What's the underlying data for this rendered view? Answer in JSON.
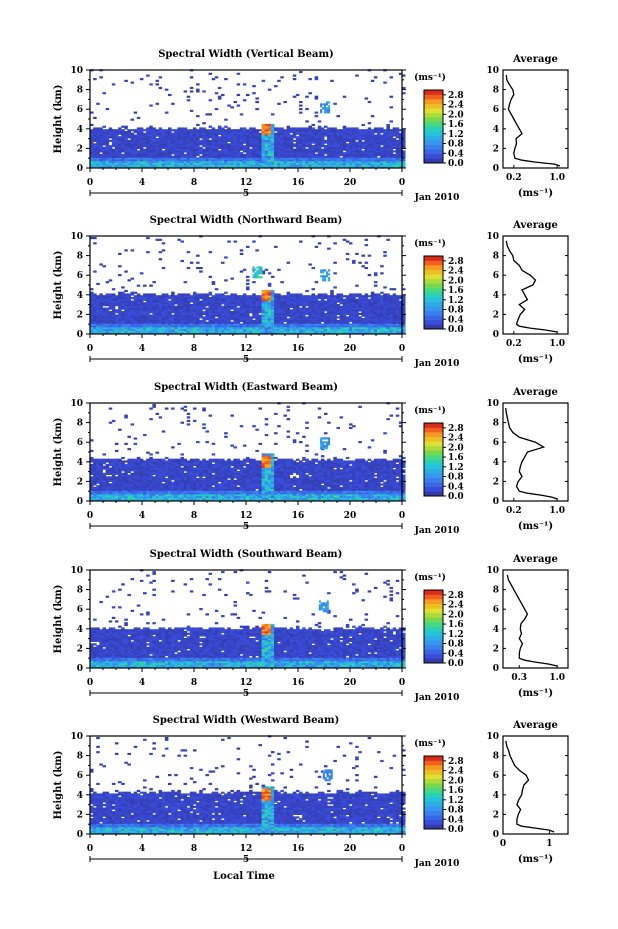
{
  "figure": {
    "xlabel": "Local Time"
  },
  "chart_data": [
    {
      "type": "heatmap",
      "title": "Spectral Width (Vertical Beam)",
      "ylabel": "Height (km)",
      "y_ticks": [
        "0",
        "2",
        "4",
        "6",
        "8",
        "10"
      ],
      "x_ticks": [
        "0",
        "4",
        "8",
        "12",
        "16",
        "20",
        "0"
      ],
      "date_tick": "5",
      "date_label": "Jan 2010",
      "xlim": [
        0,
        24
      ],
      "ylim": [
        0,
        10
      ],
      "colorbar": {
        "unit": "(ms⁻¹)",
        "ticks": [
          "0.0",
          "0.4",
          "0.8",
          "1.2",
          "1.6",
          "2.0",
          "2.4",
          "2.8"
        ],
        "range": [
          0,
          3.0
        ]
      },
      "echo_top_km": 4.0,
      "upper_patches": [
        {
          "t": 18.0,
          "h": 6.2,
          "v": 0.9
        }
      ],
      "average_profile": {
        "title": "Average",
        "xlabel": "(ms⁻¹)",
        "x_ticks": [
          "0.2",
          "1.0"
        ],
        "xlim": [
          0,
          1.2
        ],
        "y_ticks": [
          "0",
          "2",
          "4",
          "6",
          "8",
          "10"
        ],
        "height_km": [
          0.2,
          0.4,
          0.6,
          0.8,
          1.0,
          1.5,
          2.0,
          2.5,
          3.0,
          3.5,
          4.0,
          4.5,
          5.0,
          5.5,
          6.0,
          6.5,
          7.0,
          7.5,
          8.0,
          8.5,
          9.0,
          9.5
        ],
        "width_ms": [
          1.05,
          0.95,
          0.6,
          0.35,
          0.22,
          0.2,
          0.22,
          0.25,
          0.24,
          0.35,
          0.3,
          0.25,
          0.2,
          0.15,
          0.1,
          0.12,
          0.15,
          0.2,
          0.18,
          0.12,
          0.07,
          0.06
        ]
      }
    },
    {
      "type": "heatmap",
      "title": "Spectral Width (Northward Beam)",
      "ylabel": "Height (km)",
      "y_ticks": [
        "0",
        "2",
        "4",
        "6",
        "8",
        "10"
      ],
      "x_ticks": [
        "0",
        "4",
        "8",
        "12",
        "16",
        "20",
        "0"
      ],
      "date_tick": "5",
      "date_label": "Jan 2010",
      "xlim": [
        0,
        24
      ],
      "ylim": [
        0,
        10
      ],
      "colorbar": {
        "unit": "(ms⁻¹)",
        "ticks": [
          "0.0",
          "0.4",
          "0.8",
          "1.2",
          "1.6",
          "2.0",
          "2.4",
          "2.8"
        ],
        "range": [
          0,
          3.0
        ]
      },
      "echo_top_km": 4.0,
      "upper_patches": [
        {
          "t": 12.8,
          "h": 6.3,
          "v": 1.4
        },
        {
          "t": 18.0,
          "h": 6.0,
          "v": 1.0
        }
      ],
      "average_profile": {
        "title": "Average",
        "xlabel": "(ms⁻¹)",
        "x_ticks": [
          "0.2",
          "1.0"
        ],
        "xlim": [
          0,
          1.2
        ],
        "y_ticks": [
          "0",
          "2",
          "4",
          "6",
          "8",
          "10"
        ],
        "height_km": [
          0.2,
          0.4,
          0.6,
          0.8,
          1.0,
          1.5,
          2.0,
          2.5,
          3.0,
          3.5,
          4.0,
          4.5,
          5.0,
          5.5,
          6.0,
          6.5,
          7.0,
          7.5,
          8.0,
          8.5,
          9.0,
          9.5
        ],
        "width_ms": [
          1.0,
          0.8,
          0.5,
          0.3,
          0.25,
          0.28,
          0.32,
          0.4,
          0.3,
          0.45,
          0.4,
          0.35,
          0.55,
          0.6,
          0.5,
          0.35,
          0.3,
          0.2,
          0.18,
          0.12,
          0.08,
          0.06
        ]
      }
    },
    {
      "type": "heatmap",
      "title": "Spectral Width (Eastward Beam)",
      "ylabel": "Height (km)",
      "y_ticks": [
        "0",
        "2",
        "4",
        "6",
        "8",
        "10"
      ],
      "x_ticks": [
        "0",
        "4",
        "8",
        "12",
        "16",
        "20",
        "0"
      ],
      "date_tick": "5",
      "date_label": "Jan 2010",
      "xlim": [
        0,
        24
      ],
      "ylim": [
        0,
        10
      ],
      "colorbar": {
        "unit": "(ms⁻¹)",
        "ticks": [
          "0.0",
          "0.4",
          "0.8",
          "1.2",
          "1.6",
          "2.0",
          "2.4",
          "2.8"
        ],
        "range": [
          0,
          3.0
        ]
      },
      "echo_top_km": 4.2,
      "upper_patches": [
        {
          "t": 18.0,
          "h": 5.9,
          "v": 1.0
        }
      ],
      "average_profile": {
        "title": "Average",
        "xlabel": "(ms⁻¹)",
        "x_ticks": [
          "0.2",
          "1.0"
        ],
        "xlim": [
          0,
          1.2
        ],
        "y_ticks": [
          "0",
          "2",
          "4",
          "6",
          "8",
          "10"
        ],
        "height_km": [
          0.2,
          0.4,
          0.6,
          0.8,
          1.0,
          1.5,
          2.0,
          2.5,
          3.0,
          3.5,
          4.0,
          4.5,
          5.0,
          5.5,
          6.0,
          6.5,
          7.0,
          7.5,
          8.0,
          8.5,
          9.0,
          9.5
        ],
        "width_ms": [
          1.0,
          0.9,
          0.7,
          0.45,
          0.3,
          0.25,
          0.28,
          0.35,
          0.3,
          0.32,
          0.35,
          0.4,
          0.45,
          0.75,
          0.6,
          0.3,
          0.18,
          0.12,
          0.1,
          0.08,
          0.06,
          0.05
        ]
      }
    },
    {
      "type": "heatmap",
      "title": "Spectral Width (Southward Beam)",
      "ylabel": "Height (km)",
      "y_ticks": [
        "0",
        "2",
        "4",
        "6",
        "8",
        "10"
      ],
      "x_ticks": [
        "0",
        "4",
        "8",
        "12",
        "16",
        "20",
        "0"
      ],
      "date_tick": "5",
      "date_label": "Jan 2010",
      "xlim": [
        0,
        24
      ],
      "ylim": [
        0,
        10
      ],
      "colorbar": {
        "unit": "(ms⁻¹)",
        "ticks": [
          "0.0",
          "0.4",
          "0.8",
          "1.2",
          "1.6",
          "2.0",
          "2.4",
          "2.8"
        ],
        "range": [
          0,
          3.0
        ]
      },
      "echo_top_km": 4.0,
      "upper_patches": [
        {
          "t": 17.9,
          "h": 6.3,
          "v": 0.9
        }
      ],
      "average_profile": {
        "title": "Average",
        "xlabel": "(ms⁻¹)",
        "x_ticks": [
          "0.3",
          "1.0"
        ],
        "xlim": [
          0,
          1.2
        ],
        "y_ticks": [
          "0",
          "2",
          "4",
          "6",
          "8",
          "10"
        ],
        "height_km": [
          0.2,
          0.4,
          0.6,
          0.8,
          1.0,
          1.5,
          2.0,
          2.5,
          3.0,
          3.5,
          4.0,
          4.5,
          5.0,
          5.5,
          6.0,
          6.5,
          7.0,
          7.5,
          8.0,
          8.5,
          9.0,
          9.5
        ],
        "width_ms": [
          1.0,
          0.85,
          0.6,
          0.4,
          0.3,
          0.3,
          0.32,
          0.36,
          0.3,
          0.34,
          0.32,
          0.33,
          0.4,
          0.45,
          0.4,
          0.35,
          0.3,
          0.25,
          0.2,
          0.15,
          0.1,
          0.08
        ]
      }
    },
    {
      "type": "heatmap",
      "title": "Spectral Width (Westward Beam)",
      "ylabel": "Height (km)",
      "y_ticks": [
        "0",
        "2",
        "4",
        "6",
        "8",
        "10"
      ],
      "x_ticks": [
        "0",
        "4",
        "8",
        "12",
        "16",
        "20",
        "0"
      ],
      "date_tick": "5",
      "date_label": "Jan 2010",
      "xlim": [
        0,
        24
      ],
      "ylim": [
        0,
        10
      ],
      "colorbar": {
        "unit": "(ms⁻¹)",
        "ticks": [
          "0.0",
          "0.4",
          "0.8",
          "1.2",
          "1.6",
          "2.0",
          "2.4",
          "2.8"
        ],
        "range": [
          0,
          3.0
        ]
      },
      "echo_top_km": 4.2,
      "upper_patches": [
        {
          "t": 18.2,
          "h": 6.0,
          "v": 0.8
        }
      ],
      "average_profile": {
        "title": "Average",
        "xlabel": "(ms⁻¹)",
        "x_ticks": [
          "0",
          "1"
        ],
        "xlim": [
          0,
          1.4
        ],
        "y_ticks": [
          "0",
          "2",
          "4",
          "6",
          "8",
          "10"
        ],
        "height_km": [
          0.2,
          0.4,
          0.6,
          0.8,
          1.0,
          1.5,
          2.0,
          2.5,
          3.0,
          3.5,
          4.0,
          4.5,
          5.0,
          5.5,
          6.0,
          6.5,
          7.0,
          7.5,
          8.0,
          8.5,
          9.0,
          9.5
        ],
        "width_ms": [
          1.1,
          1.0,
          0.7,
          0.4,
          0.3,
          0.3,
          0.33,
          0.38,
          0.3,
          0.34,
          0.4,
          0.42,
          0.45,
          0.55,
          0.5,
          0.35,
          0.25,
          0.2,
          0.15,
          0.12,
          0.08,
          0.06
        ]
      }
    }
  ]
}
